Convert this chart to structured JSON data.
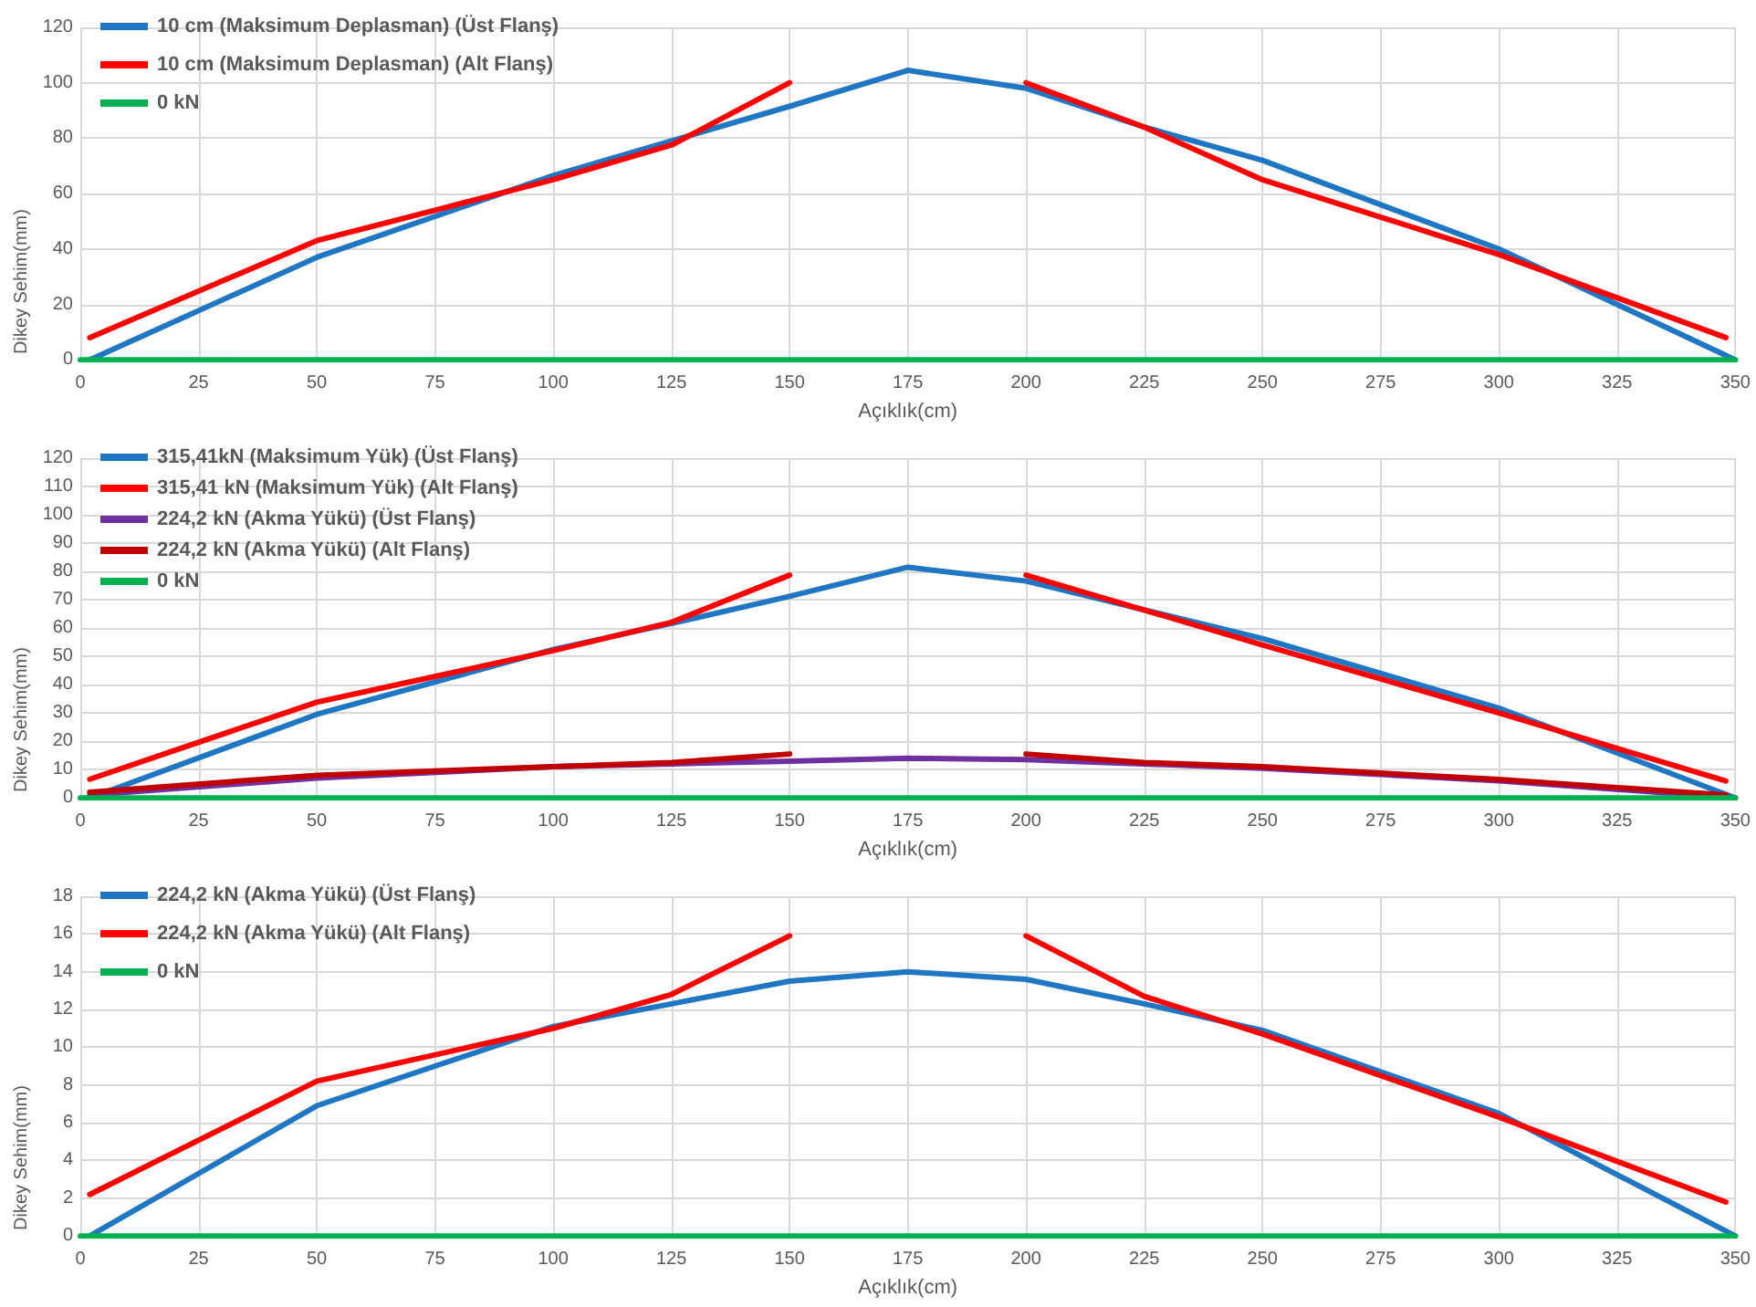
{
  "chart_data": [
    {
      "type": "line",
      "xlabel": "Açıklık(cm)",
      "ylabel": "Dikey Sehim(mm)",
      "xlim": [
        0,
        350
      ],
      "xticks": [
        0,
        25,
        50,
        75,
        100,
        125,
        150,
        175,
        200,
        225,
        250,
        275,
        300,
        325,
        350
      ],
      "ylim": [
        0,
        120
      ],
      "yticks": [
        0,
        20,
        40,
        60,
        80,
        100,
        120
      ],
      "grid": true,
      "legend": "top left",
      "marker": "none",
      "line_style": "solid",
      "series": [
        {
          "name": "10 cm (Maksimum Deplasman) (Üst Flanş)",
          "color": "#1f77c4",
          "x": [
            2,
            50,
            100,
            125,
            150,
            175,
            200,
            225,
            250,
            300,
            350
          ],
          "values": [
            0,
            37,
            66.5,
            79,
            91.5,
            104.5,
            98,
            84,
            72,
            40,
            0
          ]
        },
        {
          "name": "10 cm (Maksimum Deplasman) (Alt Flanş)",
          "color": "#ff0000",
          "x": [
            2,
            50,
            75,
            100,
            125,
            150,
            175,
            200,
            225,
            250,
            300,
            348
          ],
          "values": [
            8,
            43,
            54,
            65,
            77.5,
            100,
            null,
            100,
            84,
            65,
            38,
            8
          ]
        },
        {
          "name": "0 kN",
          "color": "#00b050",
          "x": [
            0,
            350
          ],
          "values": [
            0,
            0
          ]
        }
      ]
    },
    {
      "type": "line",
      "xlabel": "Açıklık(cm)",
      "ylabel": "Dikey Sehim(mm)",
      "xlim": [
        0,
        350
      ],
      "xticks": [
        0,
        25,
        50,
        75,
        100,
        125,
        150,
        175,
        200,
        225,
        250,
        275,
        300,
        325,
        350
      ],
      "ylim": [
        0,
        120
      ],
      "yticks": [
        0,
        10,
        20,
        30,
        40,
        50,
        60,
        70,
        80,
        90,
        100,
        110,
        120
      ],
      "grid": true,
      "legend": "top left",
      "marker": "none",
      "line_style": "solid",
      "series": [
        {
          "name": "315,41kN (Maksimum Yük) (Üst Flanş)",
          "color": "#1f77c4",
          "x": [
            2,
            50,
            100,
            125,
            150,
            175,
            200,
            250,
            300,
            350
          ],
          "values": [
            0,
            29.5,
            52.4,
            61.6,
            71.2,
            81.5,
            76.6,
            56.3,
            31.7,
            0
          ]
        },
        {
          "name": "315,41 kN (Maksimum Yük) (Alt Flanş)",
          "color": "#ff0000",
          "x": [
            2,
            50,
            100,
            125,
            150,
            175,
            200,
            250,
            300,
            348
          ],
          "values": [
            6.6,
            33.8,
            52,
            62,
            78.7,
            null,
            78.7,
            54,
            30,
            6
          ]
        },
        {
          "name": "224,2 kN (Akma Yükü) (Üst Flanş)",
          "color": "#7030a0",
          "x": [
            2,
            50,
            100,
            125,
            150,
            175,
            200,
            250,
            300,
            350
          ],
          "values": [
            1,
            7,
            11,
            12,
            13,
            14,
            13.5,
            10.5,
            6,
            0
          ]
        },
        {
          "name": "224,2 kN (Akma Yükü) (Alt Flanş)",
          "color": "#c00000",
          "x": [
            2,
            50,
            100,
            125,
            150,
            175,
            200,
            225,
            250,
            300,
            348
          ],
          "values": [
            2,
            8,
            11,
            12.5,
            15.5,
            null,
            15.5,
            12.5,
            11,
            6.5,
            1
          ]
        },
        {
          "name": "0 kN",
          "color": "#00b050",
          "x": [
            0,
            350
          ],
          "values": [
            0,
            0
          ]
        }
      ]
    },
    {
      "type": "line",
      "xlabel": "Açıklık(cm)",
      "ylabel": "Dikey Sehim(mm)",
      "xlim": [
        0,
        350
      ],
      "xticks": [
        0,
        25,
        50,
        75,
        100,
        125,
        150,
        175,
        200,
        225,
        250,
        275,
        300,
        325,
        350
      ],
      "ylim": [
        0,
        18
      ],
      "yticks": [
        0,
        2,
        4,
        6,
        8,
        10,
        12,
        14,
        16,
        18
      ],
      "grid": true,
      "legend": "top left",
      "marker": "none",
      "line_style": "solid",
      "series": [
        {
          "name": "224,2 kN (Akma Yükü) (Üst Flanş)",
          "color": "#1f77c4",
          "x": [
            2,
            50,
            100,
            125,
            150,
            175,
            200,
            225,
            250,
            300,
            350
          ],
          "values": [
            0,
            6.9,
            11.1,
            12.3,
            13.5,
            14,
            13.6,
            12.3,
            10.9,
            6.5,
            0
          ]
        },
        {
          "name": "224,2 kN (Akma Yükü) (Alt Flanş)",
          "color": "#ff0000",
          "x": [
            2,
            50,
            100,
            125,
            150,
            175,
            200,
            225,
            250,
            300,
            348
          ],
          "values": [
            2.2,
            8.2,
            11,
            12.8,
            15.9,
            null,
            15.9,
            12.7,
            10.7,
            6.3,
            1.8
          ]
        },
        {
          "name": "0 kN",
          "color": "#00b050",
          "x": [
            0,
            350
          ],
          "values": [
            0,
            0
          ]
        }
      ]
    }
  ]
}
